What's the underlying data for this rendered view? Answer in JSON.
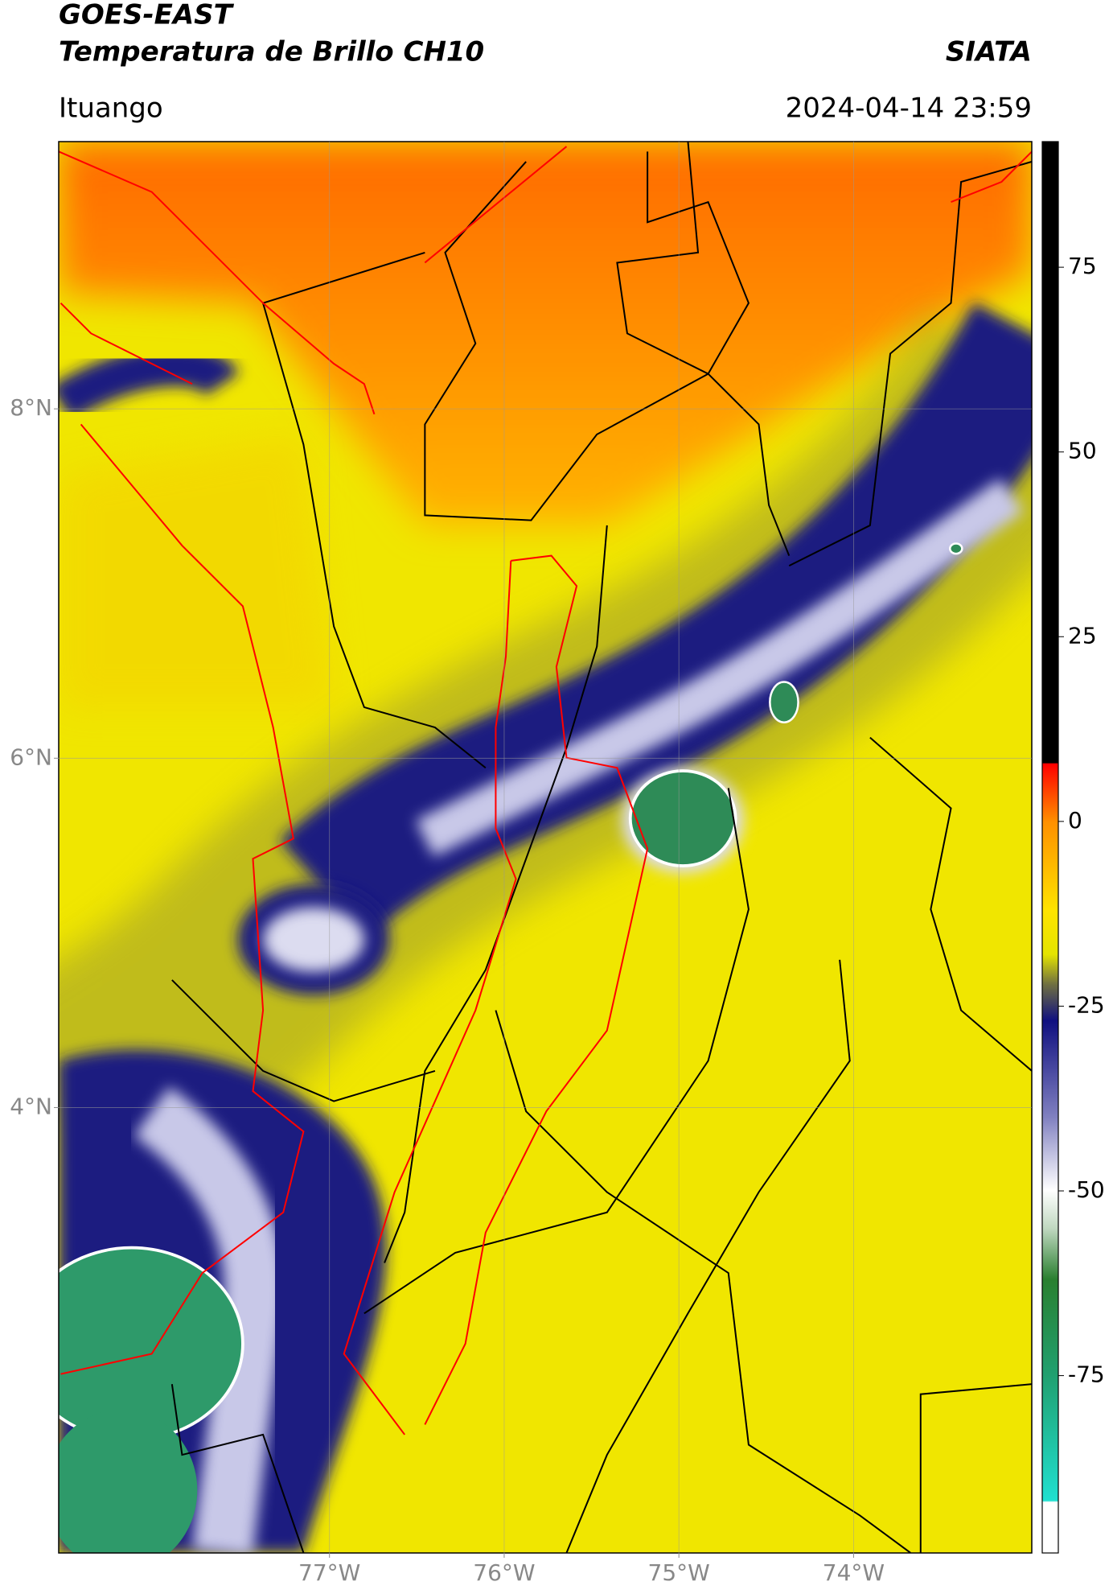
{
  "header": {
    "satellite": "GOES-EAST",
    "product": "Temperatura de Brillo CH10",
    "source": "SIATA",
    "location": "Ituango",
    "datetime": "2024-04-14 23:59"
  },
  "chart_data": {
    "type": "map",
    "xlim": [
      -78.55,
      -72.98
    ],
    "ylim": [
      1.45,
      9.53
    ],
    "xticks": [
      {
        "value": -77,
        "label": "77°W"
      },
      {
        "value": -76,
        "label": "76°W"
      },
      {
        "value": -75,
        "label": "75°W"
      },
      {
        "value": -74,
        "label": "74°W"
      }
    ],
    "yticks": [
      {
        "value": 4,
        "label": "4°N"
      },
      {
        "value": 6,
        "label": "6°N"
      },
      {
        "value": 8,
        "label": "8°N"
      }
    ],
    "grid": true,
    "colorbar": {
      "ylim": [
        -99,
        92
      ],
      "yticks": [
        -75,
        -50,
        -25,
        0,
        25,
        50,
        75
      ]
    }
  }
}
